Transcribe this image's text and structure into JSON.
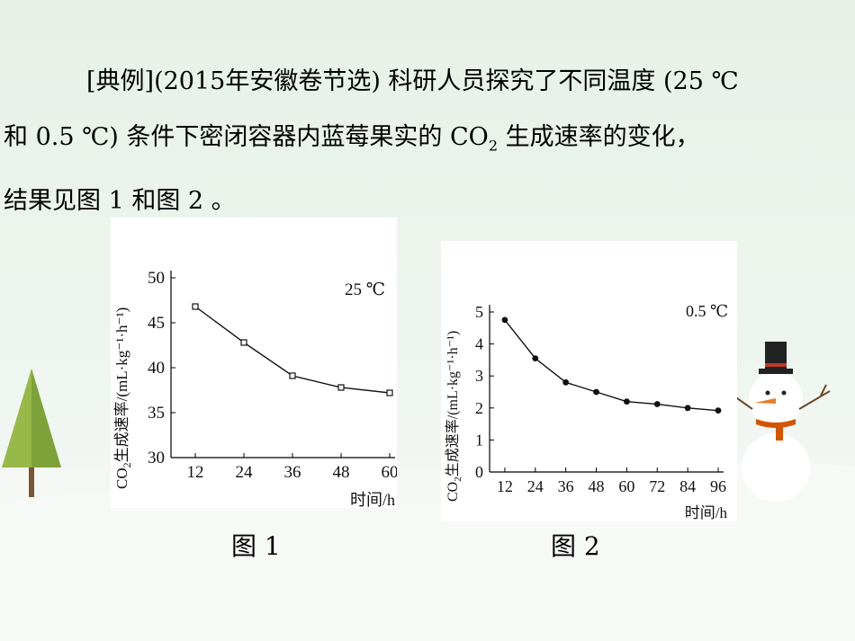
{
  "text": {
    "line1": "[典例](2015年安徽卷节选) 科研人员探究了不同温度 (25 ℃",
    "line2_pre": "和 0.5 ℃) 条件下密闭容器内蓝莓果实的 CO",
    "line2_sub": "2",
    "line2_post": " 生成速率的变化，",
    "line3": "结果见图 1 和图 2 。"
  },
  "captions": {
    "fig1": "图 1",
    "fig2": "图 2"
  },
  "chart_data": [
    {
      "type": "line",
      "annotation": "25 ℃",
      "ylabel_pre": "CO",
      "ylabel_sub": "2",
      "ylabel_post": "生成速率/(mL·kg⁻¹·h⁻¹)",
      "xlabel": "时间/h",
      "x_ticks": [
        "12",
        "24",
        "36",
        "48",
        "60"
      ],
      "y_ticks": [
        "30",
        "35",
        "40",
        "45",
        "50"
      ],
      "xlim": [
        6,
        60
      ],
      "ylim": [
        30,
        50
      ],
      "marker": "open-square",
      "x": [
        12,
        24,
        36,
        48,
        60
      ],
      "y": [
        46.8,
        42.8,
        39.1,
        37.8,
        37.2
      ]
    },
    {
      "type": "line",
      "annotation": "0.5 ℃",
      "ylabel_pre": "CO",
      "ylabel_sub": "2",
      "ylabel_post": "生成速率/(mL·kg⁻¹·h⁻¹)",
      "xlabel": "时间/h",
      "x_ticks": [
        "12",
        "24",
        "36",
        "48",
        "60",
        "72",
        "84",
        "96"
      ],
      "y_ticks": [
        "0",
        "1",
        "2",
        "3",
        "4",
        "5"
      ],
      "xlim": [
        6,
        96
      ],
      "ylim": [
        0,
        5
      ],
      "marker": "filled-circle",
      "x": [
        12,
        24,
        36,
        48,
        60,
        72,
        84,
        96
      ],
      "y": [
        4.75,
        3.55,
        2.8,
        2.5,
        2.2,
        2.12,
        2.0,
        1.92
      ]
    }
  ]
}
